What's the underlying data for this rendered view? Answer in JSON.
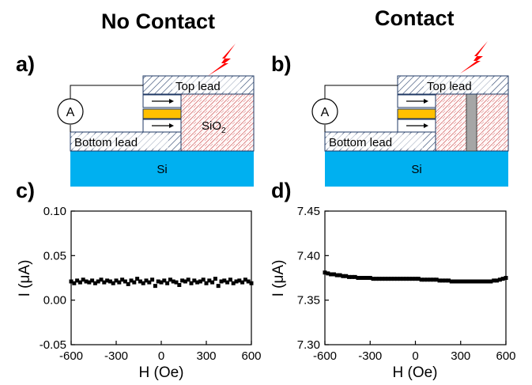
{
  "headings": {
    "left": "No Contact",
    "right": "Contact"
  },
  "panel_labels": {
    "a": "a)",
    "b": "b)",
    "c": "c)",
    "d": "d)"
  },
  "diagram": {
    "top_lead": "Top lead",
    "bottom_lead": "Bottom lead",
    "substrate": "Si",
    "oxide_main": "SiO",
    "oxide_sub": "2",
    "ammeter": "A",
    "colors": {
      "substrate": "#00b0f0",
      "spacer": "#ffc000",
      "oxide_hatch": "#d06060",
      "lead_hatch": "#1f3864",
      "contact": "#a6a6a6",
      "lightning": "#ff0000"
    }
  },
  "chart_data": [
    {
      "type": "scatter",
      "xlabel": "H (Oe)",
      "ylabel": "I (μA)",
      "xlim": [
        -600,
        600
      ],
      "ylim": [
        -0.05,
        0.1
      ],
      "xticks": [
        "-600",
        "-300",
        "0",
        "300",
        "600"
      ],
      "yticks": [
        "-0.05",
        "0.00",
        "0.05",
        "0.10"
      ],
      "series": [
        {
          "x": [
            -600,
            -580,
            -560,
            -540,
            -520,
            -500,
            -480,
            -460,
            -440,
            -420,
            -400,
            -380,
            -360,
            -340,
            -320,
            -300,
            -280,
            -260,
            -240,
            -220,
            -200,
            -180,
            -160,
            -140,
            -120,
            -100,
            -80,
            -60,
            -40,
            -20,
            0,
            20,
            40,
            60,
            80,
            100,
            120,
            140,
            160,
            180,
            200,
            220,
            240,
            260,
            280,
            300,
            320,
            340,
            360,
            380,
            400,
            420,
            440,
            460,
            480,
            500,
            520,
            540,
            560,
            580,
            600
          ],
          "y": [
            0.021,
            0.019,
            0.022,
            0.02,
            0.023,
            0.021,
            0.02,
            0.022,
            0.019,
            0.021,
            0.023,
            0.02,
            0.022,
            0.021,
            0.019,
            0.022,
            0.02,
            0.023,
            0.021,
            0.018,
            0.022,
            0.02,
            0.024,
            0.021,
            0.019,
            0.022,
            0.02,
            0.023,
            0.016,
            0.021,
            0.02,
            0.022,
            0.019,
            0.023,
            0.021,
            0.02,
            0.017,
            0.022,
            0.021,
            0.023,
            0.019,
            0.022,
            0.02,
            0.021,
            0.023,
            0.019,
            0.022,
            0.02,
            0.024,
            0.016,
            0.021,
            0.022,
            0.02,
            0.023,
            0.019,
            0.021,
            0.022,
            0.02,
            0.023,
            0.021,
            0.019
          ]
        }
      ]
    },
    {
      "type": "scatter",
      "xlabel": "H (Oe)",
      "ylabel": "I (μA)",
      "xlim": [
        -600,
        600
      ],
      "ylim": [
        7.3,
        7.45
      ],
      "xticks": [
        "-600",
        "-300",
        "0",
        "300",
        "600"
      ],
      "yticks": [
        "7.30",
        "7.35",
        "7.40",
        "7.45"
      ],
      "series": [
        {
          "x": [
            -600,
            -580,
            -560,
            -540,
            -520,
            -500,
            -480,
            -460,
            -440,
            -420,
            -400,
            -380,
            -360,
            -340,
            -320,
            -300,
            -280,
            -260,
            -240,
            -220,
            -200,
            -180,
            -160,
            -140,
            -120,
            -100,
            -80,
            -60,
            -40,
            -20,
            0,
            20,
            40,
            60,
            80,
            100,
            120,
            140,
            160,
            180,
            200,
            220,
            240,
            260,
            280,
            300,
            320,
            340,
            360,
            380,
            400,
            420,
            440,
            460,
            480,
            500,
            520,
            540,
            560,
            580,
            600
          ],
          "y": [
            7.381,
            7.38,
            7.379,
            7.379,
            7.378,
            7.378,
            7.377,
            7.377,
            7.376,
            7.376,
            7.376,
            7.375,
            7.375,
            7.375,
            7.375,
            7.375,
            7.374,
            7.374,
            7.374,
            7.374,
            7.374,
            7.374,
            7.374,
            7.374,
            7.374,
            7.374,
            7.374,
            7.374,
            7.374,
            7.374,
            7.374,
            7.374,
            7.373,
            7.373,
            7.373,
            7.373,
            7.373,
            7.373,
            7.372,
            7.372,
            7.372,
            7.372,
            7.371,
            7.371,
            7.371,
            7.371,
            7.371,
            7.371,
            7.371,
            7.371,
            7.371,
            7.371,
            7.371,
            7.371,
            7.371,
            7.371,
            7.372,
            7.372,
            7.373,
            7.374,
            7.375
          ]
        }
      ]
    }
  ]
}
